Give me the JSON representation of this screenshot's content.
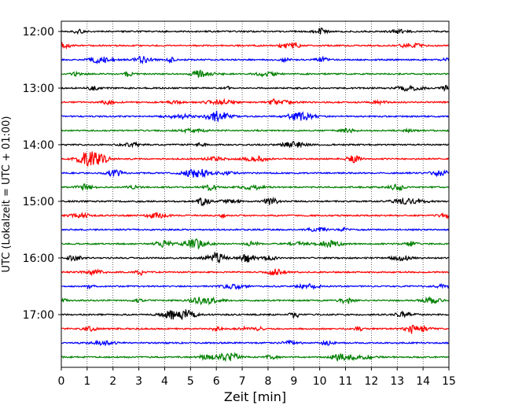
{
  "chart_data": {
    "type": "line",
    "title": "",
    "xlabel": "Zeit  [min]",
    "ylabel": "UTC (Lokalzeit = UTC + 01:00)",
    "xlim": [
      0,
      15
    ],
    "x_ticks": [
      0,
      1,
      2,
      3,
      4,
      5,
      6,
      7,
      8,
      9,
      10,
      11,
      12,
      13,
      14,
      15
    ],
    "y_ticks": [
      "12:00",
      "13:00",
      "14:00",
      "15:00",
      "16:00",
      "17:00"
    ],
    "grid": "vertical dotted at each minute",
    "trace_interval_minutes": 15,
    "trace_colors": [
      "#000000",
      "#ff0000",
      "#0000ff",
      "#008000"
    ],
    "series": [
      {
        "start": "12:00"
      },
      {
        "start": "12:15"
      },
      {
        "start": "12:30"
      },
      {
        "start": "12:45"
      },
      {
        "start": "13:00"
      },
      {
        "start": "13:15"
      },
      {
        "start": "13:30"
      },
      {
        "start": "13:45"
      },
      {
        "start": "14:00"
      },
      {
        "start": "14:15"
      },
      {
        "start": "14:30"
      },
      {
        "start": "14:45"
      },
      {
        "start": "15:00"
      },
      {
        "start": "15:15"
      },
      {
        "start": "15:30"
      },
      {
        "start": "15:45"
      },
      {
        "start": "16:00"
      },
      {
        "start": "16:15"
      },
      {
        "start": "16:30"
      },
      {
        "start": "16:45"
      },
      {
        "start": "17:00"
      },
      {
        "start": "17:15"
      },
      {
        "start": "17:30"
      },
      {
        "start": "17:45"
      }
    ]
  }
}
